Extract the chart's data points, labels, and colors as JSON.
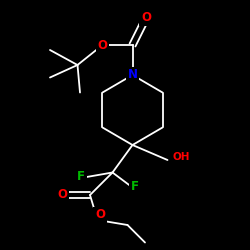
{
  "background": "#000000",
  "bond_color": "#ffffff",
  "atom_colors": {
    "O": "#ff0000",
    "N": "#0000ff",
    "F": "#00bb00",
    "C": "#ffffff",
    "H": "#ffffff"
  },
  "font_size": 7.5,
  "bond_width": 1.3,
  "figsize": [
    2.5,
    2.5
  ],
  "dpi": 100,
  "xlim": [
    0,
    10
  ],
  "ylim": [
    0,
    10
  ]
}
